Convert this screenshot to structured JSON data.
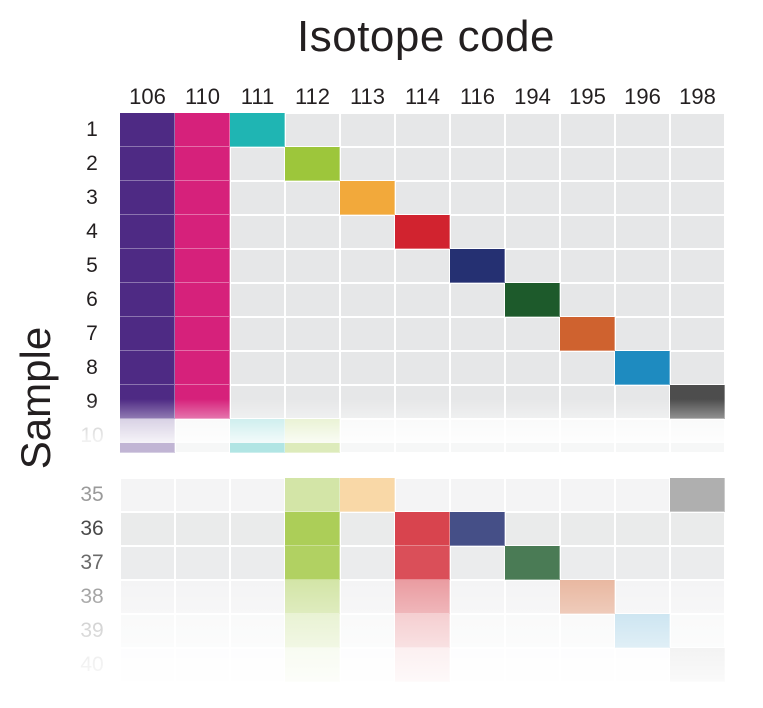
{
  "title": "Isotope code",
  "ylabel": "Sample",
  "columns": [
    "106",
    "110",
    "111",
    "112",
    "113",
    "114",
    "116",
    "194",
    "195",
    "196",
    "198"
  ],
  "colors": {
    "106": "#4e2a84",
    "110": "#d6217b",
    "111": "#1fb5b3",
    "112": "#9dc63b",
    "113": "#f2a93b",
    "114": "#d1232f",
    "116": "#253072",
    "194": "#1d5a2b",
    "195": "#cf622f",
    "196": "#1e8bc0",
    "198": "#4d4d4d",
    "grid": "#e6e7e8"
  },
  "rows_top": [
    {
      "label": "1",
      "cells": [
        "106",
        "110",
        "111"
      ]
    },
    {
      "label": "2",
      "cells": [
        "106",
        "110",
        "112"
      ]
    },
    {
      "label": "3",
      "cells": [
        "106",
        "110",
        "113"
      ]
    },
    {
      "label": "4",
      "cells": [
        "106",
        "110",
        "114"
      ]
    },
    {
      "label": "5",
      "cells": [
        "106",
        "110",
        "116"
      ]
    },
    {
      "label": "6",
      "cells": [
        "106",
        "110",
        "194"
      ]
    },
    {
      "label": "7",
      "cells": [
        "106",
        "110",
        "195"
      ]
    },
    {
      "label": "8",
      "cells": [
        "106",
        "110",
        "196"
      ]
    },
    {
      "label": "9",
      "cells": [
        "106",
        "110",
        "198"
      ]
    },
    {
      "label": "10",
      "cells": [
        "106",
        "111",
        "112"
      ]
    }
  ],
  "rows_bottom": [
    {
      "label": "35",
      "cells": [
        "112",
        "113",
        "198"
      ]
    },
    {
      "label": "36",
      "cells": [
        "112",
        "114",
        "116"
      ]
    },
    {
      "label": "37",
      "cells": [
        "112",
        "114",
        "194"
      ]
    },
    {
      "label": "38",
      "cells": [
        "112",
        "114",
        "195"
      ]
    },
    {
      "label": "39",
      "cells": [
        "112",
        "114",
        "196"
      ]
    },
    {
      "label": "40",
      "cells": [
        "112",
        "114",
        "198"
      ]
    }
  ]
}
